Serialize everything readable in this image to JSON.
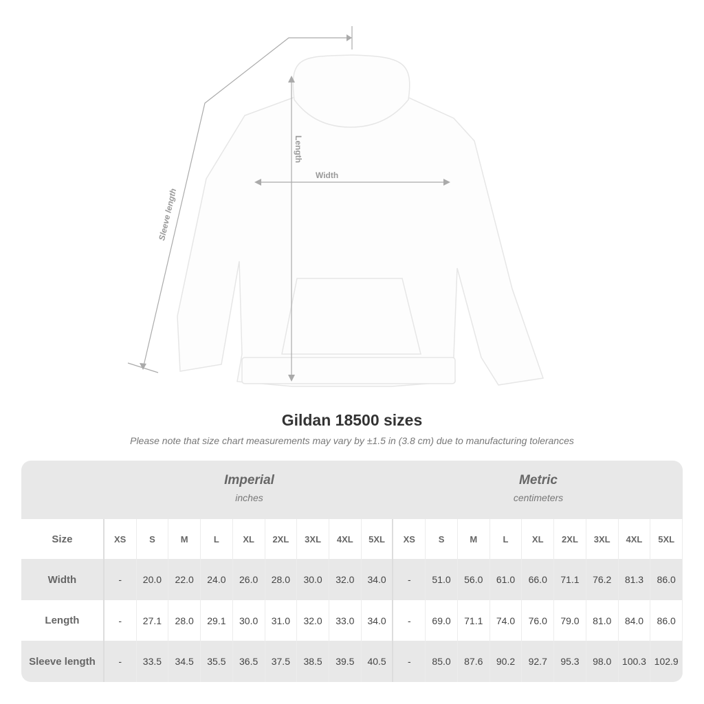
{
  "diagram": {
    "labels": {
      "sleeve": "Sleeve length",
      "length": "Length",
      "width": "Width"
    }
  },
  "title": "Gildan 18500 sizes",
  "note": "Please note that size chart measurements may vary by ±1.5 in (3.8 cm) due to manufacturing tolerances",
  "table": {
    "groups": [
      {
        "name": "Imperial",
        "unit": "inches"
      },
      {
        "name": "Metric",
        "unit": "centimeters"
      }
    ],
    "size_label": "Size",
    "sizes": [
      "XS",
      "S",
      "M",
      "L",
      "XL",
      "2XL",
      "3XL",
      "4XL",
      "5XL"
    ],
    "rows": [
      {
        "label": "Width",
        "imperial": [
          "-",
          "20.0",
          "22.0",
          "24.0",
          "26.0",
          "28.0",
          "30.0",
          "32.0",
          "34.0"
        ],
        "metric": [
          "-",
          "51.0",
          "56.0",
          "61.0",
          "66.0",
          "71.1",
          "76.2",
          "81.3",
          "86.0"
        ]
      },
      {
        "label": "Length",
        "imperial": [
          "-",
          "27.1",
          "28.0",
          "29.1",
          "30.0",
          "31.0",
          "32.0",
          "33.0",
          "34.0"
        ],
        "metric": [
          "-",
          "69.0",
          "71.1",
          "74.0",
          "76.0",
          "79.0",
          "81.0",
          "84.0",
          "86.0"
        ]
      },
      {
        "label": "Sleeve length",
        "imperial": [
          "-",
          "33.5",
          "34.5",
          "35.5",
          "36.5",
          "37.5",
          "38.5",
          "39.5",
          "40.5"
        ],
        "metric": [
          "-",
          "85.0",
          "87.6",
          "90.2",
          "92.7",
          "95.3",
          "98.0",
          "100.3",
          "102.9"
        ]
      }
    ]
  },
  "colors": {
    "band": "#e8e8e8",
    "text": "#444444",
    "muted": "#777777"
  }
}
